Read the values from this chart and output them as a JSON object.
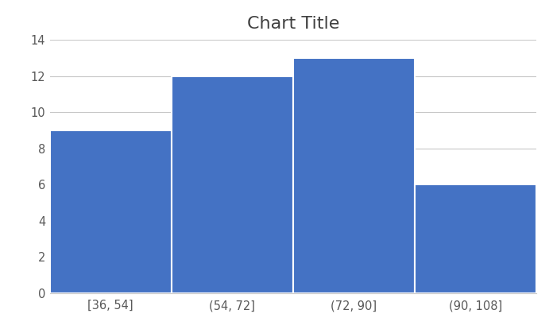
{
  "title": "Chart Title",
  "categories": [
    "[36, 54]",
    "(54, 72]",
    "(72, 90]",
    "(90, 108]"
  ],
  "values": [
    9,
    12,
    13,
    6
  ],
  "bar_color": "#4472C4",
  "bar_edge_color": "#ffffff",
  "bar_edge_width": 1.5,
  "ylim": [
    0,
    14
  ],
  "yticks": [
    0,
    2,
    4,
    6,
    8,
    10,
    12,
    14
  ],
  "title_fontsize": 16,
  "tick_fontsize": 10.5,
  "tick_color": "#595959",
  "background_color": "#ffffff",
  "grid_color": "#c8c8c8",
  "title_color": "#404040",
  "figsize": [
    6.96,
    4.19
  ],
  "dpi": 100
}
